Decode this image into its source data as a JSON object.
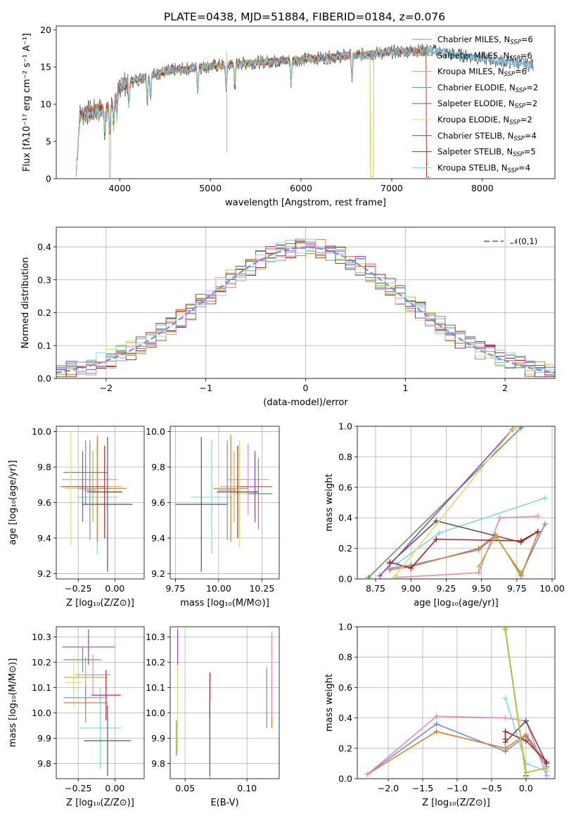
{
  "figure": {
    "title": "PLATE=0438, MJD=51884, FIBERID=0184, z=0.076",
    "colors": {
      "chab_miles": "#6d8fd8",
      "salp_miles": "#e07b2a",
      "krou_miles": "#b8b832",
      "chab_elodie": "#5a9a5a",
      "salp_elodie": "#9b3fc2",
      "krou_elodie": "#d8dc6e",
      "chab_stelib": "#555555",
      "salp_stelib": "#b22222",
      "krou_stelib": "#7fd8d8",
      "pink": "#e68ac0",
      "gaussian": "#6d8fd8"
    }
  },
  "chart_data": [
    {
      "type": "line",
      "name": "spectrum",
      "xlabel": "wavelength [Angstrom, rest frame]",
      "ylabel": "Flux [fλ10⁻¹⁷ erg cm⁻² s⁻¹ A⁻¹]",
      "xlim": [
        3300,
        8800
      ],
      "ylim": [
        0,
        20.5
      ],
      "xticks": [
        "4000",
        "5000",
        "6000",
        "7000",
        "8000"
      ],
      "yticks": [
        "0",
        "5",
        "10",
        "15",
        "20"
      ],
      "legend_position": "top-right",
      "legend": [
        {
          "label": "Chabrier MILES, N_SSP=6",
          "main": "Chabrier MILES, N",
          "sub": "SSP",
          "tail": "=6",
          "color_key": "chab_miles"
        },
        {
          "label": "Salpeter MILES, N_SSP=6",
          "main": "Salpeter MILES, N",
          "sub": "SSP",
          "tail": "=6",
          "color_key": "salp_miles"
        },
        {
          "label": "Kroupa MILES, N_SSP=6",
          "main": "Kroupa MILES, N",
          "sub": "SSP",
          "tail": "=6",
          "color_key": "krou_miles"
        },
        {
          "label": "Chabrier ELODIE, N_SSP=2",
          "main": "Chabrier ELODIE, N",
          "sub": "SSP",
          "tail": "=2",
          "color_key": "chab_elodie"
        },
        {
          "label": "Salpeter ELODIE, N_SSP=2",
          "main": "Salpeter ELODIE, N",
          "sub": "SSP",
          "tail": "=2",
          "color_key": "salp_elodie"
        },
        {
          "label": "Kroupa ELODIE, N_SSP=2",
          "main": "Kroupa ELODIE, N",
          "sub": "SSP",
          "tail": "=2",
          "color_key": "krou_elodie"
        },
        {
          "label": "Chabrier STELIB, N_SSP=4",
          "main": "Chabrier STELIB, N",
          "sub": "SSP",
          "tail": "=4",
          "color_key": "chab_stelib"
        },
        {
          "label": "Salpeter STELIB, N_SSP=5",
          "main": "Salpeter STELIB, N",
          "sub": "SSP",
          "tail": "=5",
          "color_key": "salp_stelib"
        },
        {
          "label": "Kroupa STELIB, N_SSP=4",
          "main": "Kroupa STELIB, N",
          "sub": "SSP",
          "tail": "=4",
          "color_key": "krou_stelib"
        }
      ],
      "continuum": [
        [
          3530,
          8.5
        ],
        [
          3700,
          9.0
        ],
        [
          3900,
          9.5
        ],
        [
          4000,
          12.5
        ],
        [
          4300,
          13.8
        ],
        [
          4600,
          14.6
        ],
        [
          5000,
          15.1
        ],
        [
          5500,
          15.6
        ],
        [
          6000,
          16.0
        ],
        [
          6500,
          16.5
        ],
        [
          7000,
          17.0
        ],
        [
          7400,
          17.3
        ],
        [
          7800,
          16.5
        ],
        [
          8200,
          15.8
        ],
        [
          8550,
          15.3
        ]
      ]
    },
    {
      "type": "line",
      "name": "residuals",
      "xlabel": "(data-model)/error",
      "ylabel": "Normed distribution",
      "xlim": [
        -2.5,
        2.5
      ],
      "ylim": [
        0,
        0.46
      ],
      "xticks": [
        "−2",
        "−1",
        "0",
        "1",
        "2"
      ],
      "yticks": [
        "0.0",
        "0.1",
        "0.2",
        "0.3",
        "0.4"
      ],
      "legend": [
        {
          "label": "𝒩(0,1)",
          "color_key": "gaussian"
        }
      ],
      "bin_width": 0.1
    },
    {
      "type": "scatter",
      "name": "age-vs-Z",
      "xlabel": "Z [log₁₀(Z/Z⊙)]",
      "ylabel": "age  [log₁₀(age/yr)]",
      "xlim": [
        -0.4,
        0.2
      ],
      "ylim": [
        9.17,
        10.03
      ],
      "xticks": [
        "−0.25",
        "0.00"
      ],
      "yticks": [
        "9.2",
        "9.4",
        "9.6",
        "9.8",
        "10.0"
      ],
      "points": [
        {
          "x": -0.12,
          "y": 9.63,
          "xerr": 0.14,
          "yerr": 0.32,
          "color_key": "krou_stelib"
        },
        {
          "x": -0.12,
          "y": 9.68,
          "xerr": 0.2,
          "yerr": 0.3,
          "color_key": "salp_miles"
        },
        {
          "x": -0.15,
          "y": 9.69,
          "xerr": 0.2,
          "yerr": 0.2,
          "color_key": "krou_miles"
        },
        {
          "x": -0.17,
          "y": 9.73,
          "xerr": 0.19,
          "yerr": 0.2,
          "color_key": "pink"
        },
        {
          "x": -0.2,
          "y": 9.77,
          "xerr": 0.15,
          "yerr": 0.18,
          "color_key": "chab_elodie"
        },
        {
          "x": -0.22,
          "y": 9.69,
          "xerr": 0.15,
          "yerr": 0.2,
          "color_key": "salp_elodie"
        },
        {
          "x": -0.3,
          "y": 9.68,
          "xerr": 0.05,
          "yerr": 0.32,
          "color_key": "krou_elodie"
        },
        {
          "x": -0.07,
          "y": 9.66,
          "xerr": 0.12,
          "yerr": 0.26,
          "color_key": "salp_stelib"
        },
        {
          "x": -0.05,
          "y": 9.59,
          "xerr": 0.17,
          "yerr": 0.38,
          "color_key": "chab_stelib"
        },
        {
          "x": -0.17,
          "y": 9.67,
          "xerr": 0.04,
          "yerr": 0.28,
          "color_key": "chab_miles"
        }
      ]
    },
    {
      "type": "scatter",
      "name": "age-vs-mass",
      "xlabel": "mass [log₁₀(M/M⊙)]",
      "ylabel": "",
      "xlim": [
        9.72,
        10.35
      ],
      "ylim": [
        9.17,
        10.03
      ],
      "xticks": [
        "9.75",
        "10.00",
        "10.25"
      ],
      "yticks": [
        "9.2",
        "9.4",
        "9.6",
        "9.8",
        "10.0"
      ],
      "points": [
        {
          "x": 9.96,
          "y": 9.63,
          "xerr": 0.12,
          "yerr": 0.32,
          "color_key": "krou_stelib"
        },
        {
          "x": 10.07,
          "y": 9.68,
          "xerr": 0.1,
          "yerr": 0.3,
          "color_key": "salp_miles"
        },
        {
          "x": 10.09,
          "y": 9.69,
          "xerr": 0.08,
          "yerr": 0.2,
          "color_key": "krou_miles"
        },
        {
          "x": 10.17,
          "y": 9.73,
          "xerr": 0.12,
          "yerr": 0.2,
          "color_key": "pink"
        },
        {
          "x": 10.23,
          "y": 9.65,
          "xerr": 0.08,
          "yerr": 0.2,
          "color_key": "chab_elodie"
        },
        {
          "x": 10.21,
          "y": 9.69,
          "xerr": 0.1,
          "yerr": 0.2,
          "color_key": "salp_elodie"
        },
        {
          "x": 10.12,
          "y": 9.65,
          "xerr": 0.05,
          "yerr": 0.3,
          "color_key": "krou_elodie"
        },
        {
          "x": 10.11,
          "y": 9.66,
          "xerr": 0.12,
          "yerr": 0.26,
          "color_key": "salp_stelib"
        },
        {
          "x": 9.9,
          "y": 9.59,
          "xerr": 0.15,
          "yerr": 0.38,
          "color_key": "chab_stelib"
        },
        {
          "x": 10.05,
          "y": 9.67,
          "xerr": 0.05,
          "yerr": 0.28,
          "color_key": "chab_miles"
        }
      ]
    },
    {
      "type": "line",
      "name": "mass-weight-vs-age",
      "xlabel": "age  [log₁₀(age/yr)]",
      "ylabel": "mass weight",
      "xlim": [
        8.62,
        10.02
      ],
      "ylim": [
        0,
        1.0
      ],
      "xticks": [
        "8.75",
        "9.00",
        "9.25",
        "9.50",
        "9.75",
        "10.00"
      ],
      "yticks": [
        "0.0",
        "0.2",
        "0.4",
        "0.6",
        "0.8",
        "1.0"
      ],
      "series": [
        {
          "color_key": "chab_miles",
          "x": [
            8.85,
            9.0,
            9.48,
            9.6,
            9.78,
            9.95
          ],
          "y": [
            0.07,
            0.09,
            0.19,
            0.28,
            0.03,
            0.36
          ]
        },
        {
          "color_key": "salp_miles",
          "x": [
            8.85,
            9.0,
            9.48,
            9.6,
            9.78,
            9.9
          ],
          "y": [
            0.06,
            0.08,
            0.2,
            0.29,
            0.02,
            0.3
          ]
        },
        {
          "color_key": "pink",
          "x": [
            8.9,
            9.48,
            9.63,
            9.9
          ],
          "y": [
            0.01,
            0.04,
            0.4,
            0.41
          ]
        },
        {
          "color_key": "krou_stelib",
          "x": [
            8.9,
            9.2,
            9.95
          ],
          "y": [
            0.1,
            0.3,
            0.53
          ]
        },
        {
          "color_key": "chab_stelib",
          "x": [
            8.85,
            9.18,
            9.78,
            9.9
          ],
          "y": [
            0.1,
            0.38,
            0.24,
            0.31
          ]
        },
        {
          "color_key": "salp_stelib",
          "x": [
            8.85,
            9.0,
            9.18,
            9.78,
            9.9
          ],
          "y": [
            0.11,
            0.07,
            0.26,
            0.25,
            0.31
          ]
        },
        {
          "color_key": "chab_elodie",
          "x": [
            8.7,
            9.78
          ],
          "y": [
            0.01,
            0.99
          ]
        },
        {
          "color_key": "salp_elodie",
          "x": [
            8.78,
            9.72
          ],
          "y": [
            0.02,
            0.98
          ]
        },
        {
          "color_key": "krou_elodie",
          "x": [
            8.88,
            9.73
          ],
          "y": [
            0.01,
            0.99
          ]
        },
        {
          "color_key": "krou_miles",
          "x": [
            9.48,
            9.6,
            9.78
          ],
          "y": [
            0.08,
            0.28,
            0.04
          ]
        }
      ]
    },
    {
      "type": "scatter",
      "name": "mass-vs-Z",
      "xlabel": "Z [log₁₀(Z/Z⊙)]",
      "ylabel": "mass [log₁₀(M/M⊙)]",
      "xlim": [
        -0.4,
        0.2
      ],
      "ylim": [
        9.74,
        10.34
      ],
      "xticks": [
        "−0.25",
        "0.00"
      ],
      "yticks": [
        "9.8",
        "9.9",
        "10.0",
        "10.1",
        "10.2",
        "10.3"
      ],
      "points": [
        {
          "x": -0.1,
          "y": 9.94,
          "xerr": 0.14,
          "yerr": 0.16,
          "color_key": "krou_stelib"
        },
        {
          "x": -0.2,
          "y": 10.04,
          "xerr": 0.15,
          "yerr": 0.08,
          "color_key": "salp_miles"
        },
        {
          "x": -0.2,
          "y": 10.14,
          "xerr": 0.15,
          "yerr": 0.08,
          "color_key": "krou_miles"
        },
        {
          "x": -0.15,
          "y": 10.15,
          "xerr": 0.12,
          "yerr": 0.08,
          "color_key": "pink"
        },
        {
          "x": -0.22,
          "y": 10.21,
          "xerr": 0.13,
          "yerr": 0.05,
          "color_key": "chab_elodie"
        },
        {
          "x": -0.18,
          "y": 10.26,
          "xerr": 0.18,
          "yerr": 0.07,
          "color_key": "salp_elodie"
        },
        {
          "x": -0.28,
          "y": 10.12,
          "xerr": 0.06,
          "yerr": 0.1,
          "color_key": "krou_elodie"
        },
        {
          "x": -0.06,
          "y": 10.07,
          "xerr": 0.1,
          "yerr": 0.1,
          "color_key": "salp_stelib"
        },
        {
          "x": -0.05,
          "y": 9.89,
          "xerr": 0.16,
          "yerr": 0.14,
          "color_key": "chab_stelib"
        },
        {
          "x": -0.2,
          "y": 10.06,
          "xerr": 0.15,
          "yerr": 0.05,
          "color_key": "chab_miles"
        }
      ]
    },
    {
      "type": "scatter",
      "name": "mass-vs-EBV",
      "xlabel": "E(B-V)",
      "ylabel": "",
      "xlim": [
        0.038,
        0.126
      ],
      "ylim": [
        9.74,
        10.34
      ],
      "xticks": [
        "0.05",
        "0.10"
      ],
      "yticks": [
        "9.8",
        "9.9",
        "10.0",
        "10.1",
        "10.2",
        "10.3"
      ],
      "points": [
        {
          "x": 0.044,
          "y": 10.1,
          "yerr": 0.26,
          "color_key": "krou_elodie"
        },
        {
          "x": 0.044,
          "y": 10.26,
          "yerr": 0.07,
          "color_key": "salp_elodie"
        },
        {
          "x": 0.043,
          "y": 9.9,
          "yerr": 0.07,
          "color_key": "chab_elodie"
        },
        {
          "x": 0.07,
          "y": 9.9,
          "yerr": 0.16,
          "color_key": "krou_stelib"
        },
        {
          "x": 0.07,
          "y": 10.07,
          "yerr": 0.09,
          "color_key": "salp_stelib"
        },
        {
          "x": 0.07,
          "y": 9.9,
          "yerr": 0.15,
          "color_key": "chab_stelib"
        },
        {
          "x": 0.116,
          "y": 10.06,
          "yerr": 0.12,
          "color_key": "chab_miles"
        },
        {
          "x": 0.12,
          "y": 10.04,
          "yerr": 0.1,
          "color_key": "salp_miles"
        },
        {
          "x": 0.12,
          "y": 10.15,
          "yerr": 0.17,
          "color_key": "pink"
        }
      ]
    },
    {
      "type": "line",
      "name": "mass-weight-vs-Z",
      "xlabel": "Z [log₁₀(Z/Z⊙)]",
      "ylabel": "mass weight",
      "xlim": [
        -2.45,
        0.42
      ],
      "ylim": [
        0,
        1.0
      ],
      "xticks": [
        "−2.0",
        "−1.5",
        "−1.0",
        "−0.5",
        "0.0"
      ],
      "yticks": [
        "0.0",
        "0.2",
        "0.4",
        "0.6",
        "0.8",
        "1.0"
      ],
      "series": [
        {
          "color_key": "chab_miles",
          "x": [
            -2.3,
            -1.3,
            -0.3,
            0.0,
            0.3
          ],
          "y": [
            0.03,
            0.36,
            0.18,
            0.28,
            0.08
          ]
        },
        {
          "color_key": "salp_miles",
          "x": [
            -2.3,
            -1.3,
            -0.3,
            0.0,
            0.3
          ],
          "y": [
            0.03,
            0.31,
            0.2,
            0.29,
            0.1
          ]
        },
        {
          "color_key": "pink",
          "x": [
            -2.3,
            -1.3,
            -0.3,
            0.0,
            0.3
          ],
          "y": [
            0.03,
            0.41,
            0.4,
            0.38,
            0.02
          ]
        },
        {
          "color_key": "krou_stelib",
          "x": [
            -0.3,
            0.0,
            0.3
          ],
          "y": [
            0.53,
            0.1,
            0.05
          ]
        },
        {
          "color_key": "chab_stelib",
          "x": [
            -0.3,
            0.0,
            0.3
          ],
          "y": [
            0.24,
            0.38,
            0.1
          ]
        },
        {
          "color_key": "salp_stelib",
          "x": [
            -0.3,
            -0.3,
            0.0,
            0.3
          ],
          "y": [
            0.26,
            0.31,
            0.25,
            0.11
          ]
        },
        {
          "color_key": "chab_elodie",
          "x": [
            -0.3,
            0.0
          ],
          "y": [
            0.99,
            0.01
          ]
        },
        {
          "color_key": "salp_elodie",
          "x": [
            -0.3,
            0.0
          ],
          "y": [
            0.98,
            0.02
          ]
        },
        {
          "color_key": "krou_elodie",
          "x": [
            -0.3,
            0.0
          ],
          "y": [
            0.99,
            0.01
          ]
        },
        {
          "color_key": "krou_miles",
          "x": [
            -0.3,
            0.0,
            0.3
          ],
          "y": [
            0.98,
            0.04,
            0.07
          ]
        }
      ]
    }
  ]
}
